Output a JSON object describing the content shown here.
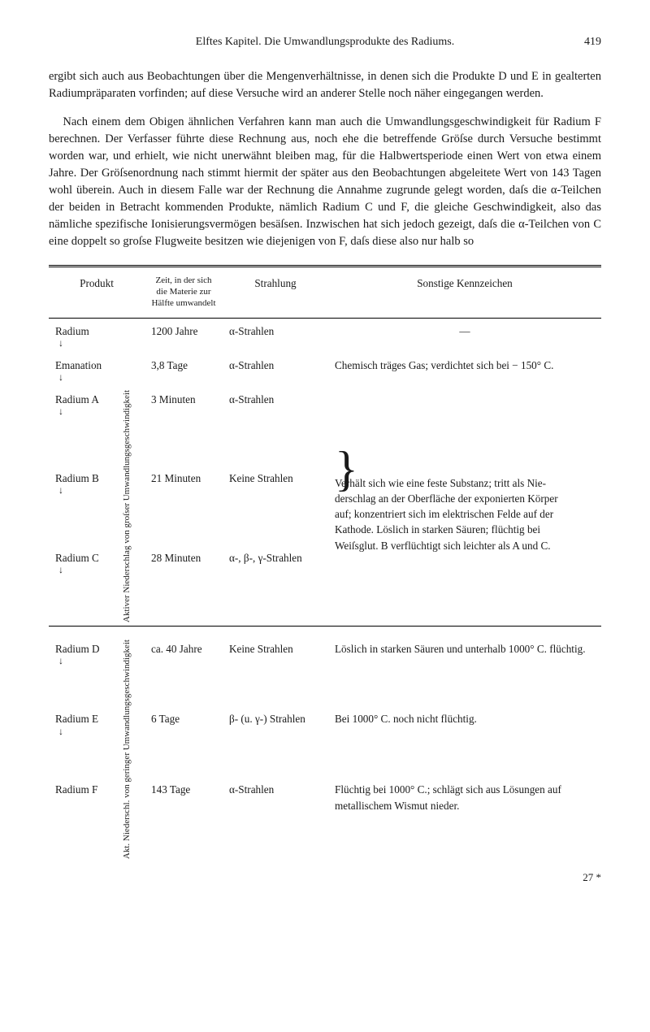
{
  "header": {
    "running": "Elftes Kapitel.   Die Umwandlungsprodukte des Radiums.",
    "pagenum": "419"
  },
  "para1": "ergibt sich auch aus Beobachtungen über die Mengenverhältnisse, in denen sich die Produkte D und E in gealterten Radiumpräparaten vor­finden; auf diese Versuche wird an anderer Stelle noch näher ein­gegangen werden.",
  "para2": "Nach einem dem Obigen ähnlichen Verfahren kann man auch die Umwandlungsgeschwindigkeit für Radium F berechnen. Der Verfasser führte diese Rechnung aus, noch ehe die betreffende Gröſse durch Versuche bestimmt worden war, und erhielt, wie nicht unerwähnt bleiben mag, für die Halbwertsperiode einen Wert von etwa einem Jahre. Der Gröſsenordnung nach stimmt hiermit der später aus den Beobachtungen abgeleitete Wert von 143 Tagen wohl überein. Auch in diesem Falle war der Rechnung die Annahme zugrunde gelegt worden, daſs die α-Teilchen der beiden in Betracht kommenden Pro­dukte, nämlich Radium C und F, die gleiche Geschwindigkeit, also das nämliche spezifische Ionisierungsvermögen besäſsen. Inzwischen hat sich jedoch gezeigt, daſs die α-Teilchen von C eine doppelt so groſse Flugweite besitzen wie diejenigen von F, daſs diese also nur halb so",
  "table": {
    "head": {
      "produkt": "Produkt",
      "zeit": "Zeit, in der sich die Materie zur Hälfte um­wandelt",
      "strahlung": "Strahlung",
      "kennzeichen": "Sonstige Kennzeichen"
    },
    "rows": {
      "radium": {
        "name": "Radium",
        "zeit": "1200 Jahre",
        "strahl": "α-Strahlen",
        "kenn": "—"
      },
      "emanation": {
        "name": "Emanation",
        "zeit": "3,8 Tage",
        "strahl": "α-Strahlen",
        "kenn": "Chemisch träges Gas; ver­dichtet sich bei − 150° C."
      },
      "ra_a": {
        "name": "Radium A",
        "zeit": "3 Minuten",
        "strahl": "α-Strahlen"
      },
      "ra_b": {
        "name": "Radium B",
        "zeit": "21 Minuten",
        "strahl": "Keine Strahlen"
      },
      "ra_c": {
        "name": "Radium C",
        "zeit": "28 Minuten",
        "strahl": "α-, β-, γ-Strahlen"
      },
      "kenn_abc": "Verhält sich wie eine feste Substanz; tritt als Nie­derschlag an der Ober­fläche der exponierten Körper auf; konzen­triert sich im elektri­schen Felde auf der Kathode. Löslich in starken Säuren; flüchtig bei Weiſsglut. B verflüchtigt sich leichter als A und C.",
      "ra_d": {
        "name": "Radium D",
        "zeit": "ca. 40 Jahre",
        "strahl": "Keine Strahlen",
        "kenn": "Löslich in starken Säuren und unterhalb 1000° C. flüchtig."
      },
      "ra_e": {
        "name": "Radium E",
        "zeit": "6 Tage",
        "strahl": "β- (u. γ-) Strahlen",
        "kenn": "Bei 1000° C. noch nicht flüchtig."
      },
      "ra_f": {
        "name": "Radium F",
        "zeit": "143 Tage",
        "strahl": "α-Strahlen",
        "kenn": "Flüchtig bei 1000° C.; schlägt sich aus Lö­sungen auf metalli­schem Wismut nieder."
      }
    },
    "vert_label_1": "Aktiver Niederschlag von groſser Umwandlungs­geschwindigkeit",
    "vert_label_2": "Akt. Niederschl. von geringer Umwand­lungsgeschwindigkeit"
  },
  "signature": "27 *",
  "glyphs": {
    "down_arrow": "↓",
    "brace_big": "}",
    "dash": "—"
  }
}
